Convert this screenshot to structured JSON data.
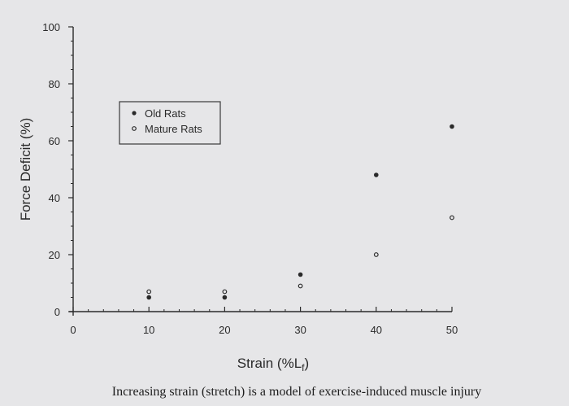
{
  "chart_data": {
    "type": "scatter",
    "title": "",
    "xlabel": "Strain (%L",
    "xlabel_sub": "f",
    "xlabel_end": ")",
    "ylabel": "Force Deficit (%)",
    "xlim": [
      0,
      50
    ],
    "ylim": [
      0,
      100
    ],
    "x_ticks": [
      0,
      10,
      20,
      30,
      40,
      50
    ],
    "y_ticks": [
      0,
      20,
      40,
      60,
      80,
      100
    ],
    "grid": false,
    "legend_position": "upper-left",
    "series": [
      {
        "name": "Old Rats",
        "marker": "filled-circle",
        "x": [
          10,
          20,
          30,
          40,
          50
        ],
        "y": [
          5,
          5,
          13,
          48,
          65
        ]
      },
      {
        "name": "Mature Rats",
        "marker": "open-circle",
        "x": [
          10,
          20,
          30,
          40,
          50
        ],
        "y": [
          7,
          7,
          9,
          20,
          33
        ]
      }
    ]
  },
  "caption": "Increasing strain (stretch) is a model of exercise-induced muscle injury",
  "colors": {
    "ink": "#2a2a2a",
    "background": "#e6e6e8"
  }
}
